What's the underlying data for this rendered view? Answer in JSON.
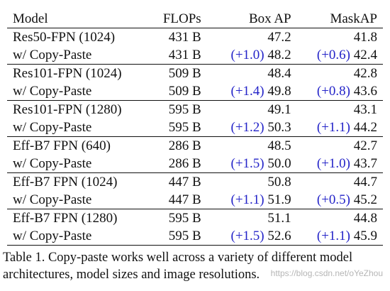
{
  "table": {
    "headers": [
      "Model",
      "FLOPs",
      "Box AP",
      "MaskAP"
    ],
    "rows": [
      {
        "model": "Res50-FPN (1024)",
        "flops": "431 B",
        "box_delta": "",
        "box": "47.2",
        "mask_delta": "",
        "mask": "41.8"
      },
      {
        "model": "w/ Copy-Paste",
        "flops": "431 B",
        "box_delta": "(+1.0)",
        "box": "48.2",
        "mask_delta": "(+0.6)",
        "mask": "42.4"
      },
      {
        "model": "Res101-FPN (1024)",
        "flops": "509 B",
        "box_delta": "",
        "box": "48.4",
        "mask_delta": "",
        "mask": "42.8"
      },
      {
        "model": "w/ Copy-Paste",
        "flops": "509 B",
        "box_delta": "(+1.4)",
        "box": "49.8",
        "mask_delta": "(+0.8)",
        "mask": "43.6"
      },
      {
        "model": "Res101-FPN (1280)",
        "flops": "595 B",
        "box_delta": "",
        "box": "49.1",
        "mask_delta": "",
        "mask": "43.1"
      },
      {
        "model": "w/ Copy-Paste",
        "flops": "595 B",
        "box_delta": "(+1.2)",
        "box": "50.3",
        "mask_delta": "(+1.1)",
        "mask": "44.2"
      },
      {
        "model": "Eff-B7 FPN (640)",
        "flops": "286 B",
        "box_delta": "",
        "box": "48.5",
        "mask_delta": "",
        "mask": "42.7"
      },
      {
        "model": "w/ Copy-Paste",
        "flops": "286 B",
        "box_delta": "(+1.5)",
        "box": "50.0",
        "mask_delta": "(+1.0)",
        "mask": "43.7"
      },
      {
        "model": "Eff-B7 FPN (1024)",
        "flops": "447 B",
        "box_delta": "",
        "box": "50.8",
        "mask_delta": "",
        "mask": "44.7"
      },
      {
        "model": "w/ Copy-Paste",
        "flops": "447 B",
        "box_delta": "(+1.1)",
        "box": "51.9",
        "mask_delta": "(+0.5)",
        "mask": "45.2"
      },
      {
        "model": "Eff-B7 FPN (1280)",
        "flops": "595 B",
        "box_delta": "",
        "box": "51.1",
        "mask_delta": "",
        "mask": "44.8"
      },
      {
        "model": "w/ Copy-Paste",
        "flops": "595 B",
        "box_delta": "(+1.5)",
        "box": "52.6",
        "mask_delta": "(+1.1)",
        "mask": "45.9"
      }
    ]
  },
  "caption": "Table 1. Copy-paste works well across a variety of different model architectures, model sizes and image resolutions.",
  "watermark": "https://blog.csdn.net/oYeZhou",
  "colors": {
    "delta": "#2323c8",
    "text": "#111111"
  }
}
